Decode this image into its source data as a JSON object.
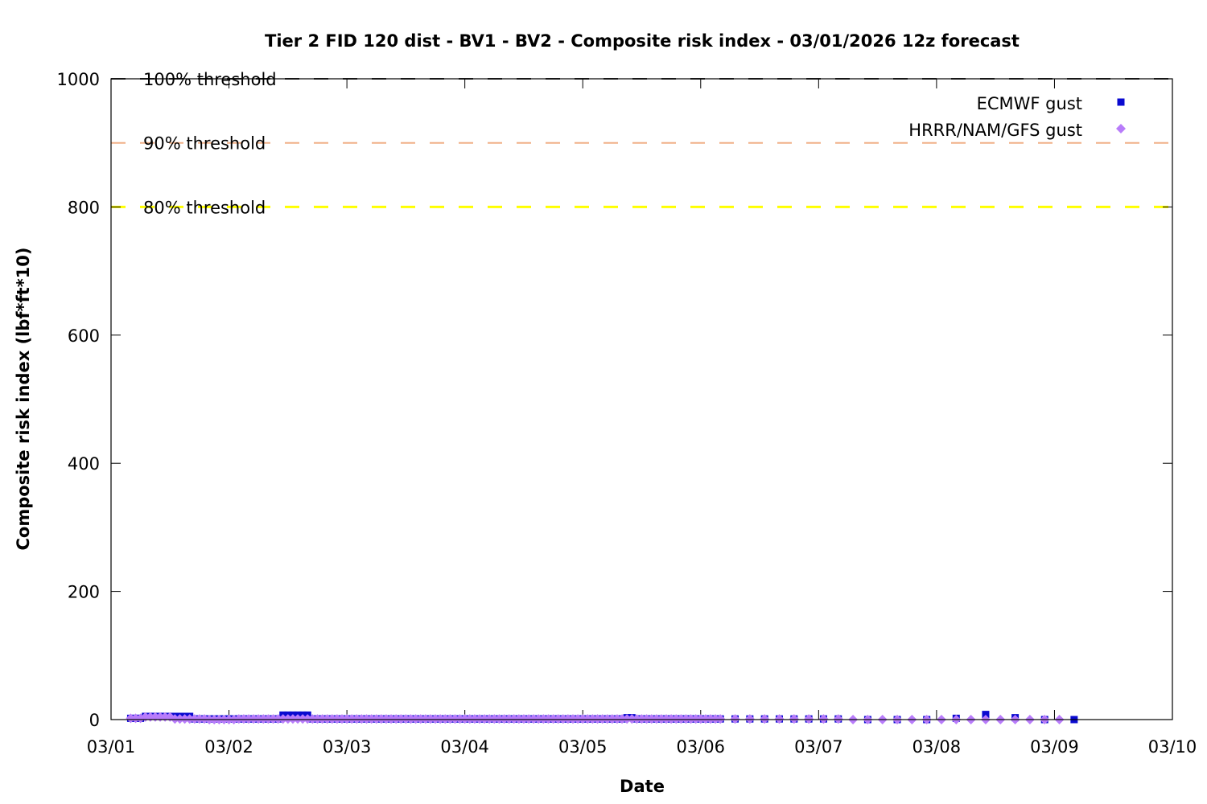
{
  "chart_data": {
    "type": "scatter",
    "title": "Tier 2 FID 120 dist - BV1 - BV2 - Composite risk index - 03/01/2026 12z forecast",
    "xlabel": "Date",
    "ylabel": "Composite risk index (lbf*ft*10)",
    "xlim": [
      "03/01",
      "03/10"
    ],
    "ylim": [
      0,
      1000
    ],
    "x_ticks": [
      "03/01",
      "03/02",
      "03/03",
      "03/04",
      "03/05",
      "03/06",
      "03/07",
      "03/08",
      "03/09",
      "03/10"
    ],
    "y_ticks": [
      0,
      200,
      400,
      600,
      800,
      1000
    ],
    "grid": false,
    "legend_placement": "top-right",
    "thresholds": [
      {
        "label": "100% threshold",
        "value": 1000,
        "color": "#3a3a3a"
      },
      {
        "label": "90% threshold",
        "value": 900,
        "color": "#f0b088"
      },
      {
        "label": "80% threshold",
        "value": 800,
        "color": "#ffff00"
      }
    ],
    "series": [
      {
        "name": "ECMWF gust",
        "marker": "square",
        "color": "#0a0ad0",
        "segments": [
          {
            "start": "03/01 04",
            "step_hours": 1,
            "values": [
              2,
              2,
              2,
              5,
              5,
              5,
              5,
              5,
              5,
              5,
              5,
              5,
              5,
              1,
              1,
              1,
              1,
              1,
              1,
              1,
              1,
              1,
              1,
              1,
              1,
              1,
              1,
              1,
              1,
              1,
              1,
              7,
              7,
              7,
              7,
              7,
              7,
              1,
              1,
              1,
              1,
              1,
              1,
              1,
              1,
              1,
              1,
              1,
              1,
              1,
              1,
              1,
              1,
              1,
              1,
              1,
              1,
              1,
              1,
              1,
              1,
              1,
              1,
              1,
              1,
              1,
              1,
              1,
              1,
              1,
              1,
              1,
              1,
              1,
              1,
              1,
              1,
              1,
              1,
              1,
              1,
              1,
              1,
              1,
              1,
              1,
              1,
              1,
              1,
              1,
              1,
              1,
              1,
              1,
              1,
              1,
              1,
              1,
              1,
              1,
              1,
              3,
              3,
              1,
              1,
              1,
              1,
              1,
              1,
              1,
              1,
              1,
              1,
              1,
              1,
              1,
              1,
              1,
              1,
              1,
              1
            ]
          },
          {
            "start": "03/06 07",
            "step_hours": 3,
            "values": [
              1,
              1,
              1,
              1,
              1,
              1,
              1,
              1
            ]
          },
          {
            "start": "03/07 10",
            "step_hours": 6,
            "values": [
              0,
              0,
              0,
              2,
              8,
              3,
              0,
              0
            ]
          }
        ]
      },
      {
        "name": "HRRR/NAM/GFS gust",
        "marker": "diamond",
        "color": "#b87cfa",
        "segments": [
          {
            "start": "03/01 04",
            "step_hours": 1,
            "values": [
              2,
              2,
              2,
              4,
              4,
              4,
              4,
              4,
              4,
              1,
              1,
              1,
              1,
              1,
              1,
              1,
              0,
              0,
              0,
              0,
              0,
              0,
              1,
              1,
              1,
              1,
              1,
              1,
              1,
              1,
              1,
              1,
              1,
              1,
              1,
              1,
              1,
              1,
              1,
              1,
              1,
              1,
              1,
              1,
              1,
              1,
              1,
              1,
              1,
              1,
              1,
              1,
              1,
              1,
              1,
              1,
              1,
              1,
              1,
              1,
              1,
              1,
              1,
              1,
              1,
              1,
              1,
              1,
              1,
              1,
              1,
              1,
              1,
              1,
              1,
              1,
              1,
              1,
              1,
              1,
              1,
              1,
              1,
              1,
              1,
              1,
              1,
              1,
              1,
              1,
              1,
              1,
              1,
              1,
              1,
              1,
              1,
              1,
              1,
              1,
              1,
              1,
              1,
              1,
              1,
              1,
              1,
              1,
              1,
              1,
              1,
              1,
              1,
              1,
              1,
              1,
              1,
              1,
              1,
              1,
              1
            ]
          },
          {
            "start": "03/06 07",
            "step_hours": 3,
            "values": [
              1,
              1,
              1,
              1,
              1,
              1,
              1,
              1,
              0,
              0,
              0,
              0,
              0,
              0,
              0,
              0,
              0,
              0,
              0,
              0,
              0,
              0,
              0
            ]
          }
        ]
      }
    ]
  }
}
